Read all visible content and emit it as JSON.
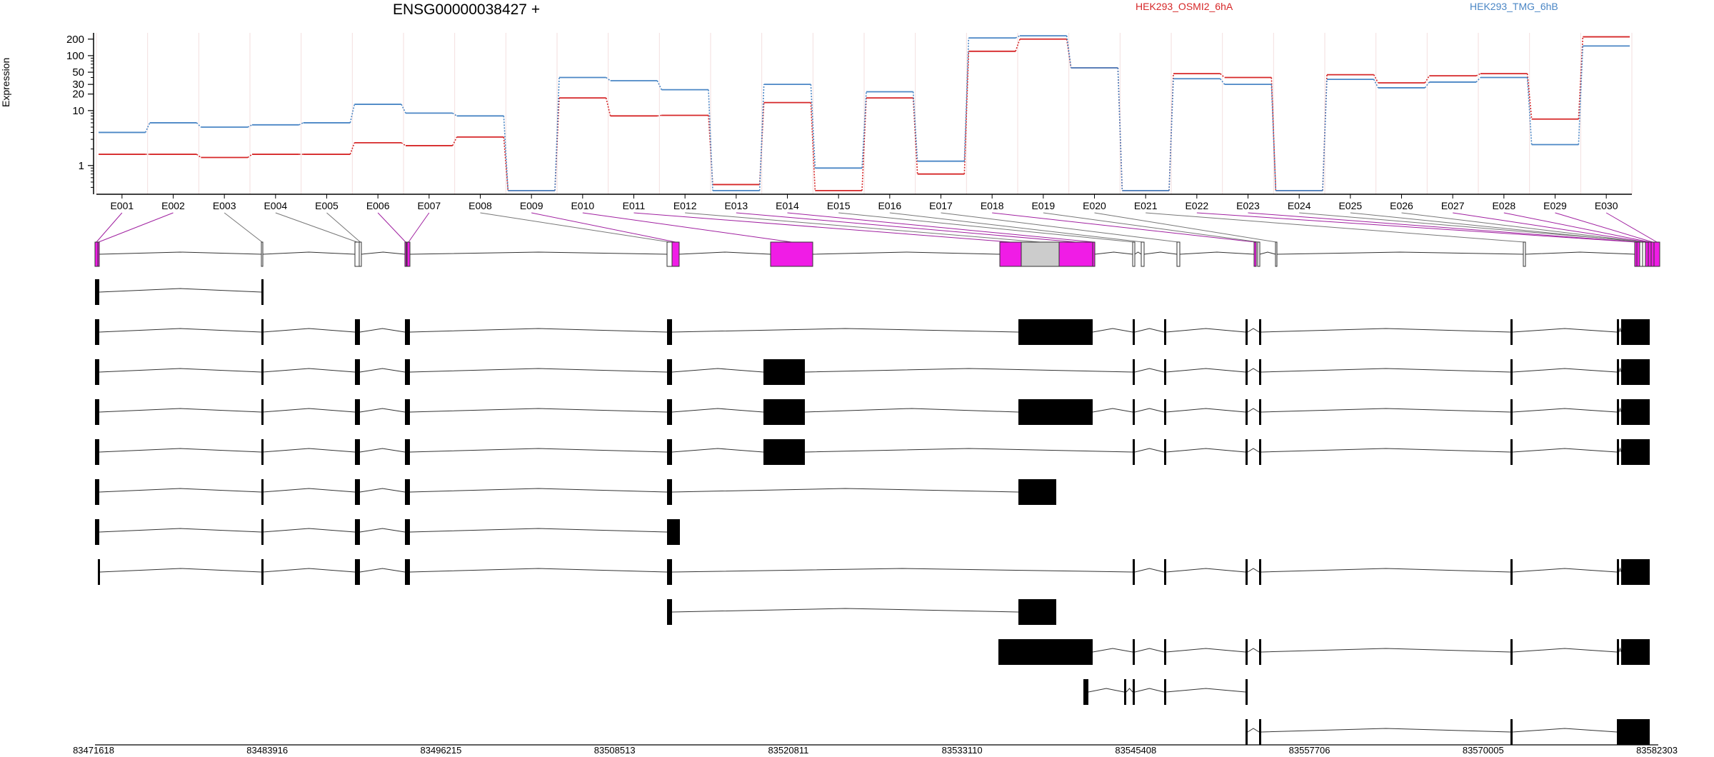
{
  "chart_data": {
    "type": "line",
    "title": "ENSG00000038427 +",
    "ylabel": "Expression",
    "xlabel": "",
    "y_scale": "log",
    "ylim": [
      0.3,
      260
    ],
    "y_ticks": [
      1,
      10,
      20,
      30,
      50,
      100,
      200
    ],
    "y_tick_labels": [
      "1",
      "10",
      "20",
      "30",
      "50",
      "100",
      "200"
    ],
    "grid": "faint vertical lines at each exon bin",
    "legend_placement": "top",
    "colors": {
      "series_a": "#d62728",
      "series_b": "#4a86c5",
      "highlight": "#f01ce6",
      "neutral_exon": "#cccccc",
      "transcript": "#000000"
    },
    "categories": [
      "E001",
      "E002",
      "E003",
      "E004",
      "E005",
      "E006",
      "E007",
      "E008",
      "E009",
      "E010",
      "E011",
      "E012",
      "E013",
      "E014",
      "E015",
      "E016",
      "E017",
      "E018",
      "E019",
      "E020",
      "E021",
      "E022",
      "E023",
      "E024",
      "E025",
      "E026",
      "E027",
      "E028",
      "E029",
      "E030"
    ],
    "series": [
      {
        "name": "HEK293_OSMI2_6hA",
        "color": "#d62728",
        "values": [
          1.6,
          1.6,
          1.4,
          1.6,
          1.6,
          2.6,
          2.3,
          3.3,
          0.35,
          17,
          8,
          8.2,
          0.45,
          14,
          0.35,
          17,
          0.7,
          120,
          200,
          60,
          0.35,
          47,
          40,
          0.35,
          45,
          32,
          43,
          47,
          7,
          220
        ]
      },
      {
        "name": "HEK293_TMG_6hB",
        "color": "#4a86c5",
        "values": [
          4,
          6,
          5,
          5.5,
          6,
          13,
          9,
          8,
          0.35,
          40,
          35,
          24,
          0.35,
          30,
          0.9,
          22,
          1.2,
          210,
          230,
          60,
          0.35,
          38,
          30,
          0.35,
          37,
          26,
          33,
          40,
          2.4,
          150
        ]
      }
    ],
    "x_axis_positions": [
      "83471618",
      "83483916",
      "83496215",
      "83508513",
      "83520811",
      "83533110",
      "83545408",
      "83557706",
      "83570005",
      "83582303"
    ],
    "gene_model": {
      "exons": [
        {
          "id": "E001",
          "highlight": true
        },
        {
          "id": "E002",
          "highlight": true
        },
        {
          "id": "E003",
          "highlight": false
        },
        {
          "id": "E004",
          "highlight": false
        },
        {
          "id": "E005",
          "highlight": false
        },
        {
          "id": "E006",
          "highlight": true
        },
        {
          "id": "E007",
          "highlight": true
        },
        {
          "id": "E008",
          "highlight": false
        },
        {
          "id": "E009",
          "highlight": true
        },
        {
          "id": "E010",
          "highlight": true
        },
        {
          "id": "E011",
          "highlight": true
        },
        {
          "id": "E012",
          "highlight": false
        },
        {
          "id": "E013",
          "highlight": true
        },
        {
          "id": "E014",
          "highlight": true
        },
        {
          "id": "E015",
          "highlight": false
        },
        {
          "id": "E016",
          "highlight": false
        },
        {
          "id": "E017",
          "highlight": false
        },
        {
          "id": "E018",
          "highlight": true
        },
        {
          "id": "E019",
          "highlight": false
        },
        {
          "id": "E020",
          "highlight": false
        },
        {
          "id": "E021",
          "highlight": false
        },
        {
          "id": "E022",
          "highlight": true
        },
        {
          "id": "E023",
          "highlight": true
        },
        {
          "id": "E024",
          "highlight": false
        },
        {
          "id": "E025",
          "highlight": false
        },
        {
          "id": "E026",
          "highlight": false
        },
        {
          "id": "E027",
          "highlight": true
        },
        {
          "id": "E028",
          "highlight": true
        },
        {
          "id": "E029",
          "highlight": true
        },
        {
          "id": "E030",
          "highlight": true
        }
      ],
      "transcript_count": 12
    }
  }
}
